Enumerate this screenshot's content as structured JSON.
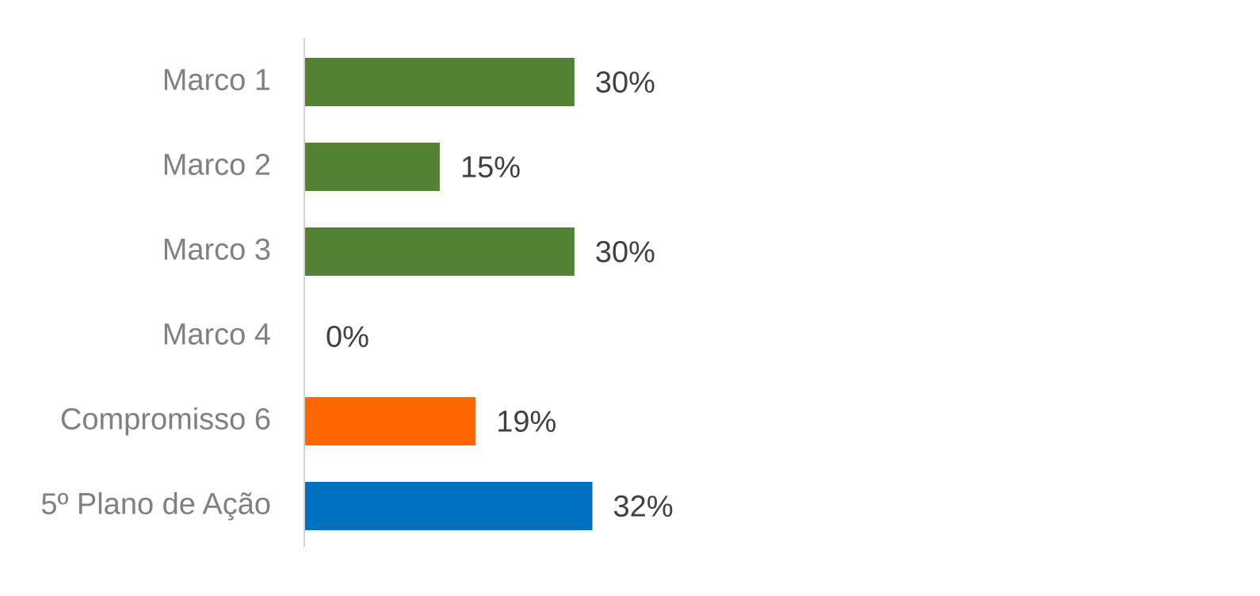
{
  "chart_data": {
    "type": "hbar",
    "categories": [
      "Marco 1",
      "Marco 2",
      "Marco 3",
      "Marco 4",
      "Compromisso 6",
      "5º Plano de Ação"
    ],
    "values": [
      30,
      15,
      30,
      0,
      19,
      32
    ],
    "value_labels": [
      "30%",
      "15%",
      "30%",
      "0%",
      "19%",
      "32%"
    ],
    "colors": [
      "#548235",
      "#548235",
      "#548235",
      "#548235",
      "#ff6600",
      "#0070c0"
    ],
    "xlim": [
      0,
      100
    ]
  }
}
